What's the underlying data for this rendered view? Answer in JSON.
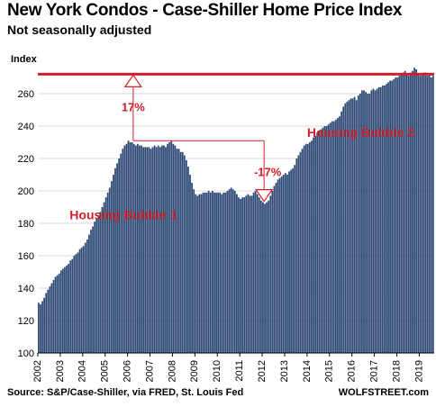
{
  "header": {
    "title": "New York Condos - Case-Shiller Home Price Index",
    "subtitle": "Not seasonally adjusted"
  },
  "footer": {
    "source": "Source: S&P/Case-Shiller, via FRED,  St. Louis Fed",
    "brand": "WOLFSTREET.com"
  },
  "colors": {
    "bar": "#2e4a75",
    "bar_stroke": "#1d3456",
    "accent": "#d0202a",
    "grid": "#d9d9d9"
  },
  "chart_data": {
    "type": "bar",
    "ylabel": "Index",
    "ylim": [
      100,
      280
    ],
    "yticks": [
      100,
      120,
      140,
      160,
      180,
      200,
      220,
      240,
      260
    ],
    "xticks": [
      "2002",
      "2003",
      "2004",
      "2005",
      "2006",
      "2007",
      "2008",
      "2009",
      "2010",
      "2011",
      "2012",
      "2013",
      "2014",
      "2015",
      "2016",
      "2017",
      "2018",
      "2019"
    ],
    "grid": "horizontal",
    "frequency": "monthly",
    "start": "2002-01",
    "end": "2019-08",
    "values": [
      131,
      130,
      132,
      134,
      137,
      139,
      141,
      143,
      145,
      147,
      148,
      149,
      151,
      152,
      153,
      154,
      155,
      157,
      158,
      160,
      161,
      162,
      164,
      165,
      166,
      168,
      170,
      173,
      176,
      178,
      181,
      183,
      185,
      187,
      190,
      193,
      196,
      199,
      202,
      206,
      210,
      214,
      217,
      220,
      223,
      226,
      228,
      229,
      231,
      230,
      230,
      229,
      228,
      229,
      228,
      228,
      227,
      227,
      227,
      227,
      226,
      227,
      228,
      227,
      228,
      227,
      228,
      228,
      227,
      229,
      230,
      231,
      229,
      228,
      226,
      226,
      224,
      224,
      222,
      219,
      215,
      210,
      205,
      201,
      198,
      197,
      198,
      198,
      199,
      199,
      199,
      200,
      199,
      200,
      199,
      199,
      199,
      199,
      198,
      199,
      199,
      200,
      201,
      202,
      201,
      200,
      198,
      196,
      195,
      196,
      196,
      197,
      198,
      197,
      197,
      199,
      200,
      198,
      196,
      194,
      193,
      192,
      193,
      194,
      197,
      200,
      203,
      205,
      207,
      208,
      209,
      210,
      211,
      210,
      212,
      213,
      214,
      216,
      220,
      222,
      224,
      226,
      228,
      229,
      229,
      230,
      231,
      233,
      234,
      236,
      237,
      238,
      239,
      240,
      240,
      241,
      242,
      243,
      243,
      244,
      245,
      246,
      249,
      252,
      254,
      255,
      256,
      257,
      257,
      258,
      256,
      259,
      260,
      262,
      262,
      261,
      260,
      260,
      262,
      263,
      262,
      263,
      264,
      264,
      265,
      265,
      266,
      267,
      268,
      268,
      269,
      270,
      270,
      271,
      272,
      273,
      274,
      272,
      271,
      273,
      274,
      276,
      275,
      272,
      271,
      272,
      273,
      273,
      271,
      272,
      270,
      271
    ],
    "annotations": {
      "bubble1": "Housing Bubble 1",
      "bubble2": "Housing Bubble 2",
      "rise": "17%",
      "drop": "-17%",
      "peak_level": 272,
      "plateau_level": 231,
      "trough_level": 193,
      "bubble1_start_level": 197
    }
  }
}
